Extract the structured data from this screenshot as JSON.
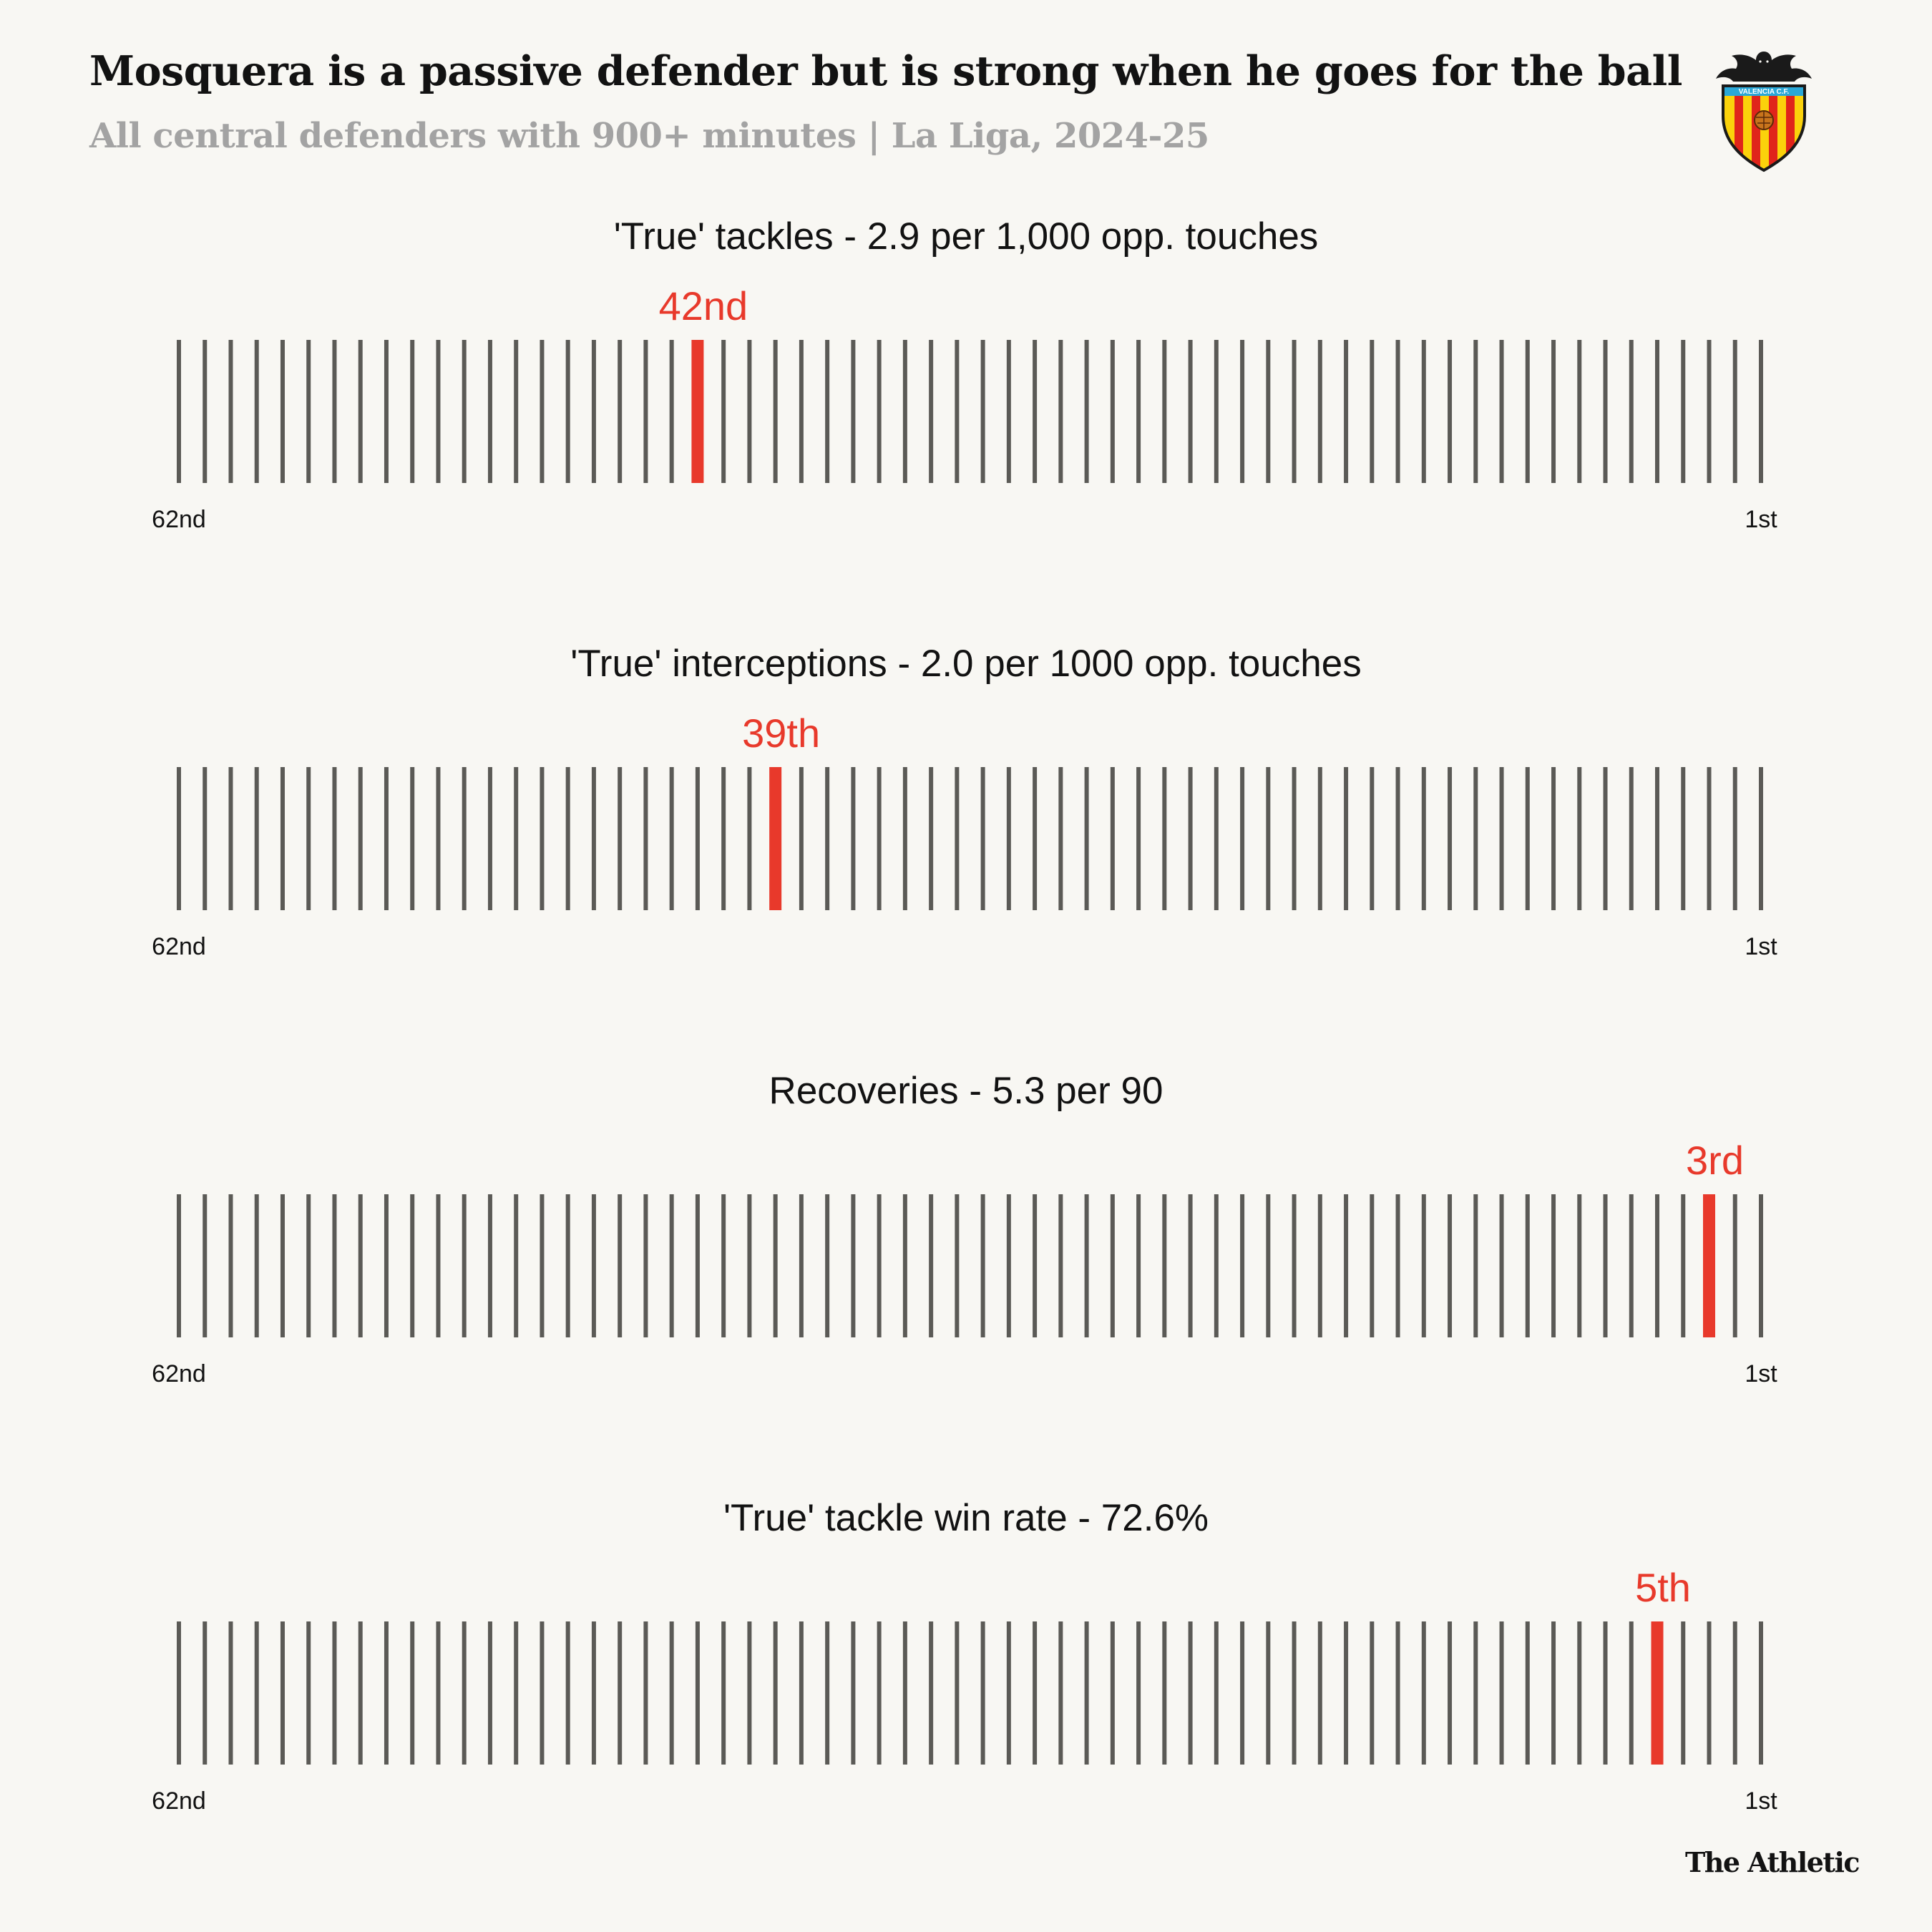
{
  "title": "Mosquera is a passive defender but is strong when he goes for the ball",
  "subtitle": "All central defenders with 900+ minutes | La Liga, 2024-25",
  "logo": {
    "icon": "valencia-cf-crest",
    "text": "VALENCIA C.F."
  },
  "footer": "The Athletic",
  "colors": {
    "background": "#f8f7f3",
    "tick": "#5b5a56",
    "highlight": "#e8392b",
    "text": "#121212",
    "subtitle": "#a3a3a3"
  },
  "chart_data": [
    {
      "type": "rank-strip",
      "title": "'True' tackles - 2.9 per 1,000 opp. touches",
      "total": 62,
      "rank": 42,
      "rank_label": "42nd",
      "left_label": "62nd",
      "right_label": "1st"
    },
    {
      "type": "rank-strip",
      "title": "'True' interceptions - 2.0 per 1000 opp. touches",
      "total": 62,
      "rank": 39,
      "rank_label": "39th",
      "left_label": "62nd",
      "right_label": "1st"
    },
    {
      "type": "rank-strip",
      "title": "Recoveries - 5.3 per 90",
      "total": 62,
      "rank": 3,
      "rank_label": "3rd",
      "left_label": "62nd",
      "right_label": "1st"
    },
    {
      "type": "rank-strip",
      "title": "'True' tackle win rate - 72.6%",
      "total": 62,
      "rank": 5,
      "rank_label": "5th",
      "left_label": "62nd",
      "right_label": "1st"
    }
  ]
}
